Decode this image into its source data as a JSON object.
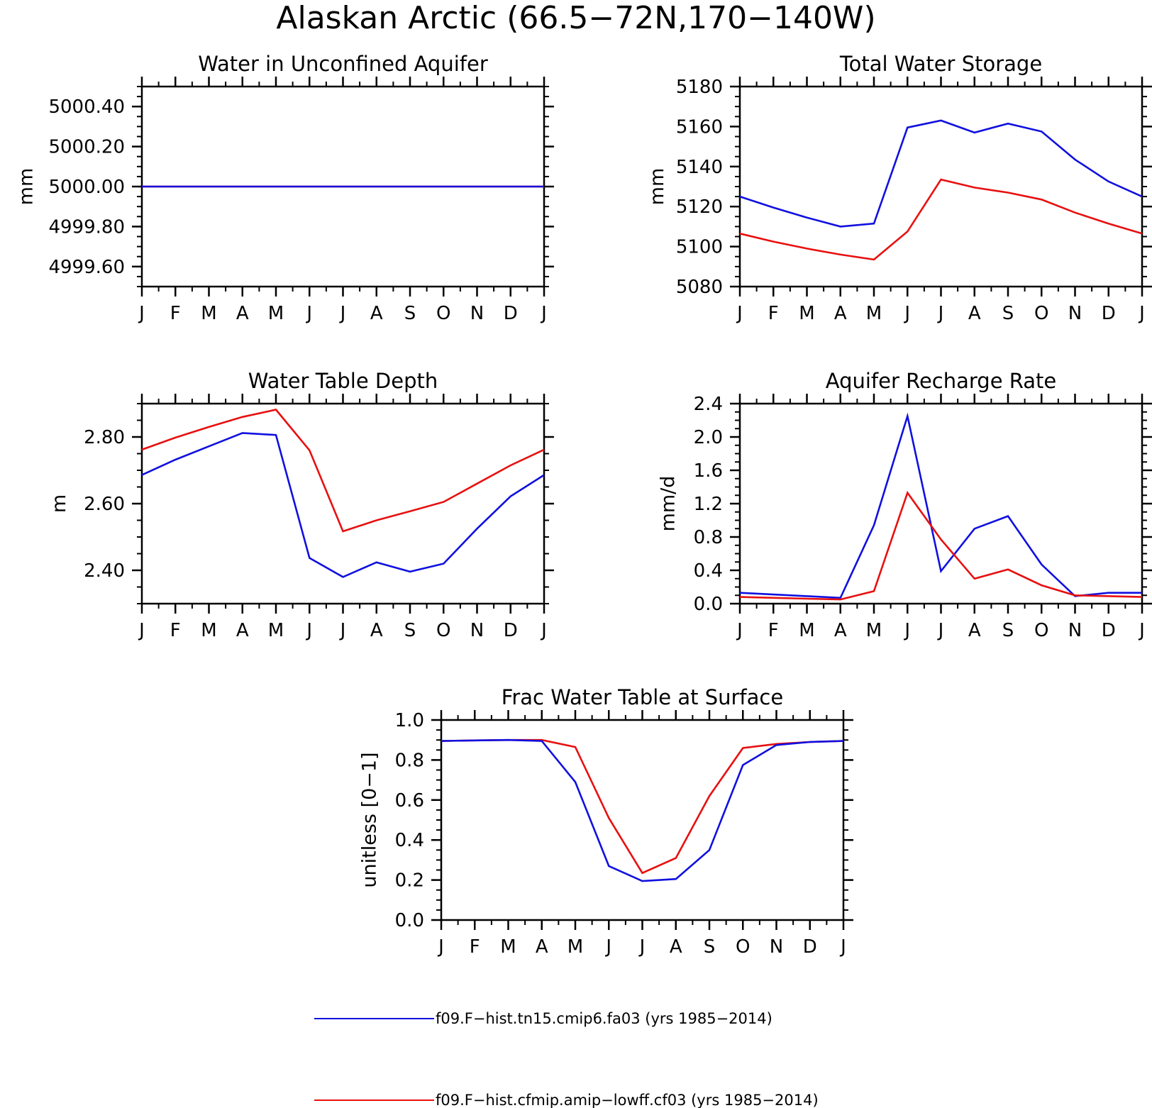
{
  "figure": {
    "title": "Alaskan Arctic (66.5−72N,170−140W)"
  },
  "legend": [
    {
      "label": "f09.F−hist.tn15.cmip6.fa03 (yrs 1985−2014)",
      "color": "#1010e0"
    },
    {
      "label": "f09.F−hist.cfmip.amip−lowff.cf03 (yrs 1985−2014)",
      "color": "#e81010"
    }
  ],
  "chart_data": [
    {
      "id": "aquifer",
      "type": "line",
      "title": "Water in Unconfined Aquifer",
      "ylabel": "mm",
      "xlabel": "",
      "x": [
        "J",
        "F",
        "M",
        "A",
        "M",
        "J",
        "J",
        "A",
        "S",
        "O",
        "N",
        "D",
        "J"
      ],
      "ylim": [
        4999.5,
        5000.5
      ],
      "yticks": [
        4999.6,
        4999.8,
        5000.0,
        5000.2,
        5000.4
      ],
      "ytick_labels": [
        "4999.60",
        "4999.80",
        "5000.00",
        "5000.20",
        "5000.40"
      ],
      "grid": false,
      "series": [
        {
          "color": "#e81010",
          "values": [
            5000,
            5000,
            5000,
            5000,
            5000,
            5000,
            5000,
            5000,
            5000,
            5000,
            5000,
            5000,
            5000
          ]
        },
        {
          "color": "#1010e0",
          "values": [
            5000,
            5000,
            5000,
            5000,
            5000,
            5000,
            5000,
            5000,
            5000,
            5000,
            5000,
            5000,
            5000
          ]
        }
      ]
    },
    {
      "id": "storage",
      "type": "line",
      "title": "Total Water Storage",
      "ylabel": "mm",
      "xlabel": "",
      "x": [
        "J",
        "F",
        "M",
        "A",
        "M",
        "J",
        "J",
        "A",
        "S",
        "O",
        "N",
        "D",
        "J"
      ],
      "ylim": [
        5080,
        5180
      ],
      "yticks": [
        5080,
        5100,
        5120,
        5140,
        5160,
        5180
      ],
      "ytick_labels": [
        "5080",
        "5100",
        "5120",
        "5140",
        "5160",
        "5180"
      ],
      "grid": false,
      "series": [
        {
          "color": "#1010e0",
          "values": [
            5125,
            5119.5,
            5114.5,
            5110,
            5111.5,
            5159.5,
            5163,
            5157,
            5161.5,
            5157.5,
            5143.5,
            5132.5,
            5125
          ]
        },
        {
          "color": "#e81010",
          "values": [
            5106.5,
            5102.5,
            5099,
            5096,
            5093.5,
            5107.5,
            5133.5,
            5129.5,
            5127,
            5123.5,
            5117,
            5111.5,
            5106.5
          ]
        }
      ]
    },
    {
      "id": "wtd",
      "type": "line",
      "title": "Water Table Depth",
      "ylabel": "m",
      "xlabel": "",
      "x": [
        "J",
        "F",
        "M",
        "A",
        "M",
        "J",
        "J",
        "A",
        "S",
        "O",
        "N",
        "D",
        "J"
      ],
      "ylim": [
        2.3,
        2.9
      ],
      "yticks": [
        2.4,
        2.6,
        2.8
      ],
      "ytick_labels": [
        "2.40",
        "2.60",
        "2.80"
      ],
      "grid": false,
      "series": [
        {
          "color": "#e81010",
          "values": [
            2.762,
            2.798,
            2.83,
            2.86,
            2.882,
            2.76,
            2.517,
            2.55,
            2.577,
            2.605,
            2.66,
            2.715,
            2.762
          ]
        },
        {
          "color": "#1010e0",
          "values": [
            2.686,
            2.732,
            2.772,
            2.812,
            2.806,
            2.437,
            2.38,
            2.424,
            2.396,
            2.42,
            2.525,
            2.622,
            2.686
          ]
        }
      ]
    },
    {
      "id": "recharge",
      "type": "line",
      "title": "Aquifer Recharge Rate",
      "ylabel": "mm/d",
      "xlabel": "",
      "x": [
        "J",
        "F",
        "M",
        "A",
        "M",
        "J",
        "J",
        "A",
        "S",
        "O",
        "N",
        "D",
        "J"
      ],
      "ylim": [
        0.0,
        2.4
      ],
      "yticks": [
        0.0,
        0.4,
        0.8,
        1.2,
        1.6,
        2.0,
        2.4
      ],
      "ytick_labels": [
        "0.0",
        "0.4",
        "0.8",
        "1.2",
        "1.6",
        "2.0",
        "2.4"
      ],
      "grid": false,
      "series": [
        {
          "color": "#1010e0",
          "values": [
            0.13,
            0.11,
            0.09,
            0.07,
            0.94,
            2.25,
            0.39,
            0.9,
            1.05,
            0.47,
            0.09,
            0.13,
            0.13
          ]
        },
        {
          "color": "#e81010",
          "values": [
            0.08,
            0.07,
            0.06,
            0.05,
            0.15,
            1.33,
            0.77,
            0.3,
            0.41,
            0.22,
            0.1,
            0.09,
            0.08
          ]
        }
      ]
    },
    {
      "id": "frac",
      "type": "line",
      "title": "Frac Water Table at Surface",
      "ylabel": "unitless [0−1]",
      "xlabel": "",
      "x": [
        "J",
        "F",
        "M",
        "A",
        "M",
        "J",
        "J",
        "A",
        "S",
        "O",
        "N",
        "D",
        "J"
      ],
      "ylim": [
        0.0,
        1.0
      ],
      "yticks": [
        0.0,
        0.2,
        0.4,
        0.6,
        0.8,
        1.0
      ],
      "ytick_labels": [
        "0.0",
        "0.2",
        "0.4",
        "0.6",
        "0.8",
        "1.0"
      ],
      "grid": false,
      "series": [
        {
          "color": "#e81010",
          "values": [
            0.895,
            0.898,
            0.9,
            0.9,
            0.865,
            0.51,
            0.235,
            0.31,
            0.62,
            0.86,
            0.88,
            0.89,
            0.895
          ]
        },
        {
          "color": "#1010e0",
          "values": [
            0.895,
            0.898,
            0.9,
            0.895,
            0.69,
            0.27,
            0.195,
            0.205,
            0.35,
            0.775,
            0.875,
            0.89,
            0.895
          ]
        }
      ]
    }
  ]
}
